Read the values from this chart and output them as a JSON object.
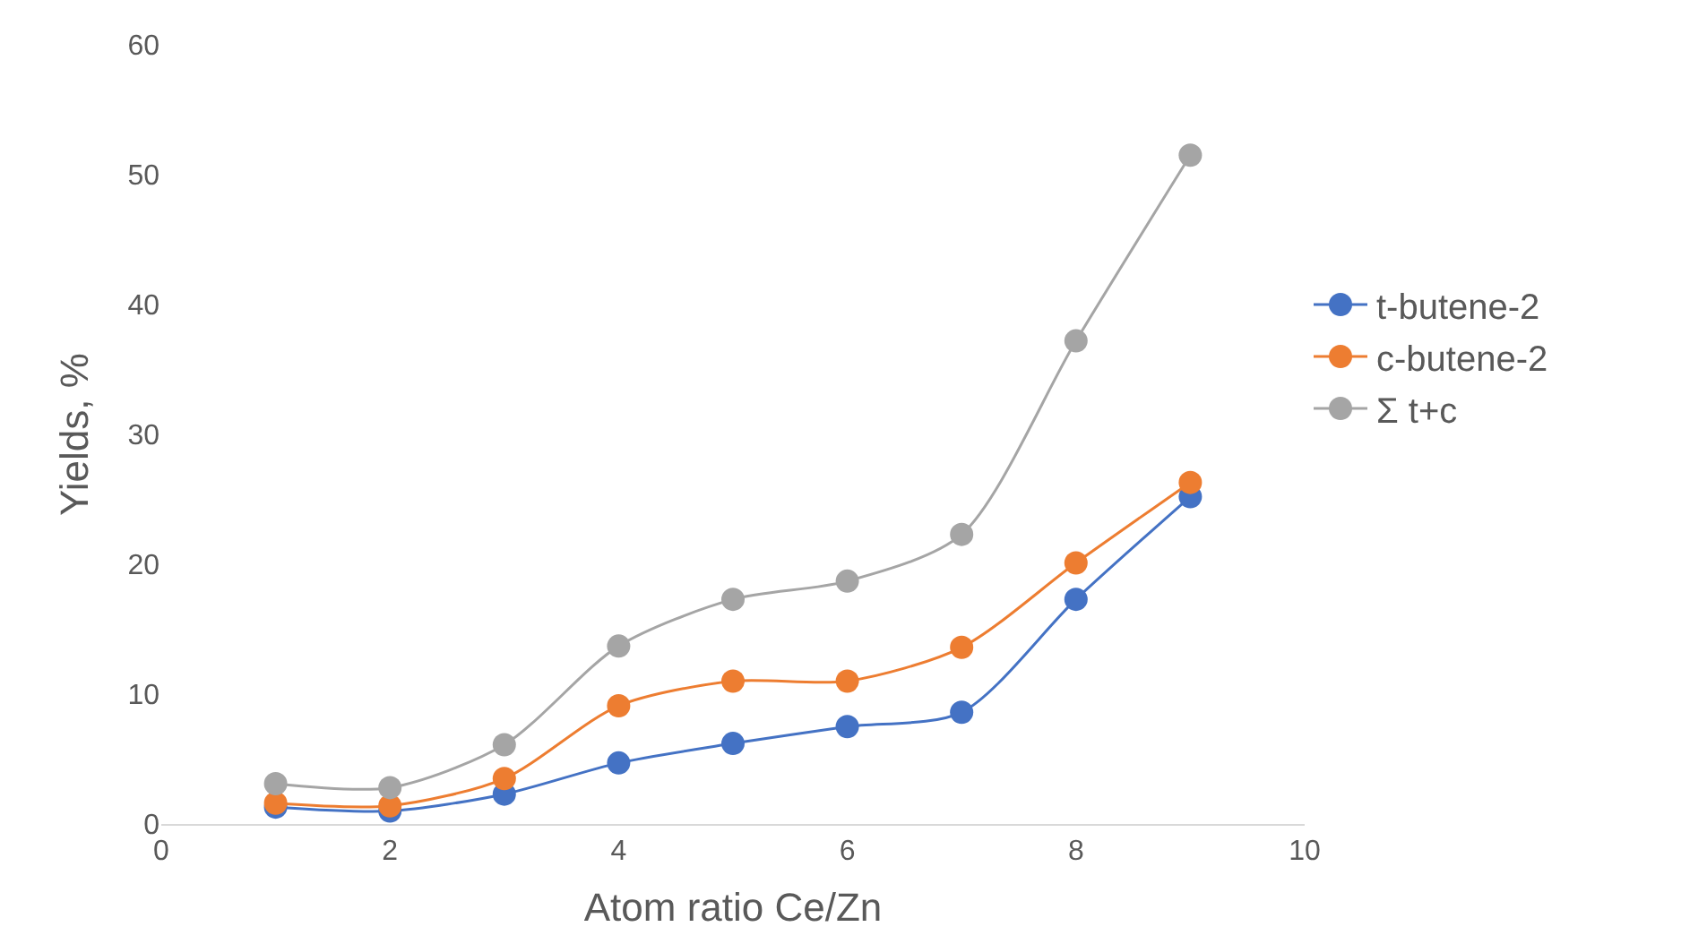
{
  "chart_data": {
    "type": "line",
    "xlabel": "Atom ratio Ce/Zn",
    "ylabel": "Yields, %",
    "x": [
      1,
      2,
      3,
      4,
      5,
      6,
      7,
      8,
      9
    ],
    "series": [
      {
        "name": "t-butene-2",
        "color": "#4472c4",
        "values": [
          1.3,
          1.0,
          2.3,
          4.7,
          6.2,
          7.5,
          8.6,
          17.3,
          25.2
        ]
      },
      {
        "name": "c-butene-2",
        "color": "#ed7d31",
        "values": [
          1.6,
          1.4,
          3.5,
          9.1,
          11.0,
          11.0,
          13.6,
          20.1,
          26.3
        ]
      },
      {
        "name": "Σ t+c",
        "color": "#a5a5a5",
        "values": [
          3.1,
          2.8,
          6.1,
          13.7,
          17.3,
          18.7,
          22.3,
          37.2,
          51.5
        ]
      }
    ],
    "xlim": [
      0,
      10
    ],
    "xticks": [
      0,
      2,
      4,
      6,
      8,
      10
    ],
    "ylim": [
      0,
      60
    ],
    "yticks": [
      0,
      10,
      20,
      30,
      40,
      50,
      60
    ],
    "legend": "right",
    "marker": "circle",
    "line_style": "solid"
  }
}
